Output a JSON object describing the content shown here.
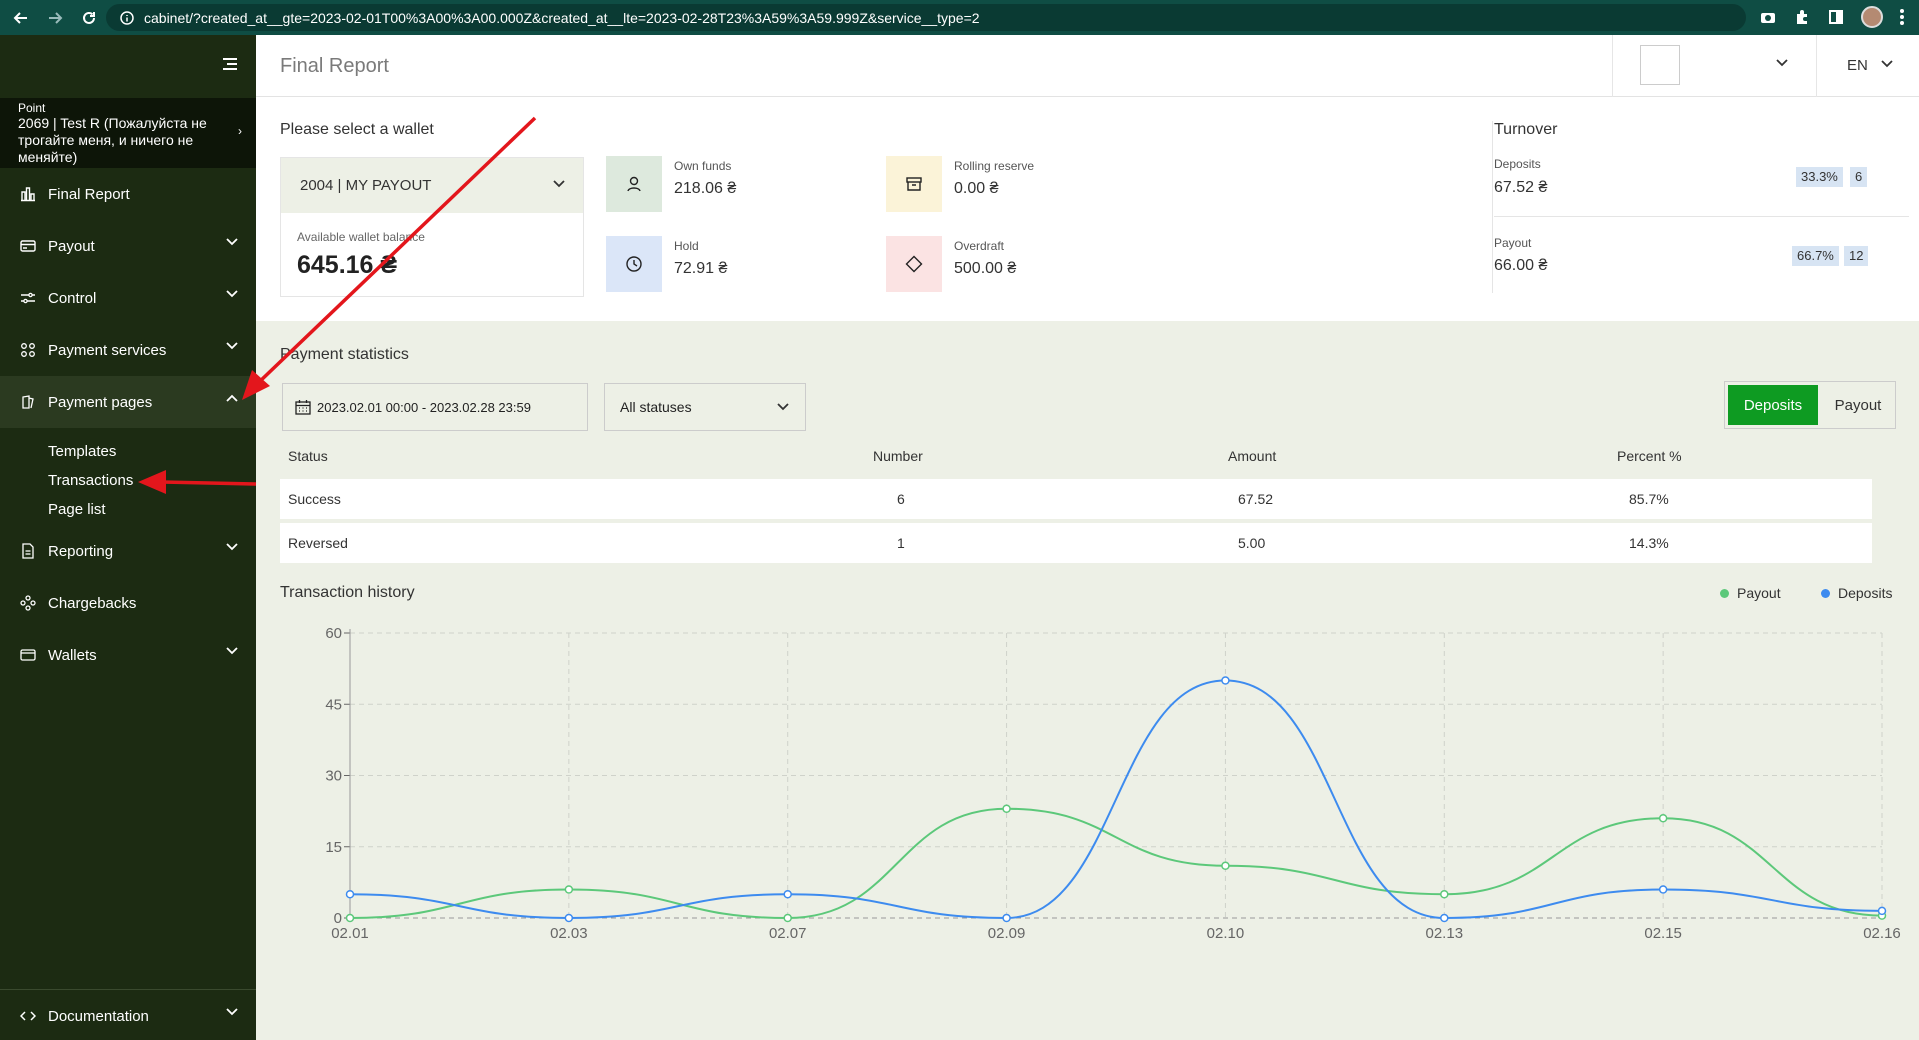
{
  "browser": {
    "url": "cabinet/?created_at__gte=2023-02-01T00%3A00%3A00.000Z&created_at__lte=2023-02-28T23%3A59%3A59.999Z&service__type=2"
  },
  "sidebar": {
    "point_label": "Point",
    "point_name": "2069 | Test R (Пожалуйста не трогайте меня, и ничего не меняйте)",
    "items": [
      {
        "label": "Final Report",
        "icon": "chart-icon"
      },
      {
        "label": "Payout",
        "icon": "card-icon"
      },
      {
        "label": "Control",
        "icon": "sliders-icon"
      },
      {
        "label": "Payment services",
        "icon": "grid-icon"
      },
      {
        "label": "Payment pages",
        "icon": "pages-icon"
      },
      {
        "label": "Reporting",
        "icon": "document-icon"
      },
      {
        "label": "Chargebacks",
        "icon": "network-icon"
      },
      {
        "label": "Wallets",
        "icon": "wallet-icon"
      },
      {
        "label": "Documentation",
        "icon": "code-icon"
      }
    ],
    "sub_items": [
      "Templates",
      "Transactions",
      "Page list"
    ]
  },
  "header": {
    "title": "Final Report",
    "language": "EN"
  },
  "wallet": {
    "section_title": "Please select a wallet",
    "selected": "2004 | MY PAYOUT",
    "available_label": "Available wallet balance",
    "available_value": "645.16 ₴"
  },
  "stats": {
    "own_funds_label": "Own funds",
    "own_funds_value": "218.06 ₴",
    "rolling_label": "Rolling reserve",
    "rolling_value": "0.00 ₴",
    "hold_label": "Hold",
    "hold_value": "72.91 ₴",
    "overdraft_label": "Overdraft",
    "overdraft_value": "500.00 ₴",
    "colors": {
      "own": "#dde9dd",
      "rolling": "#fbf3d8",
      "hold": "#dbe6f8",
      "overdraft": "#fbe3e3"
    }
  },
  "turnover": {
    "title": "Turnover",
    "deposits_label": "Deposits",
    "deposits_value": "67.52 ₴",
    "deposits_percent": "33.3%",
    "deposits_count": "6",
    "payout_label": "Payout",
    "payout_value": "66.00 ₴",
    "payout_percent": "66.7%",
    "payout_count": "12"
  },
  "payment_statistics": {
    "title": "Payment statistics",
    "date_range": "2023.02.01 00:00 - 2023.02.28 23:59",
    "status_filter": "All statuses",
    "toggle_active": "Deposits",
    "toggle_inactive": "Payout",
    "columns": [
      "Status",
      "Number",
      "Amount",
      "Percent %"
    ],
    "rows": [
      [
        "Success",
        "6",
        "67.52",
        "85.7%"
      ],
      [
        "Reversed",
        "1",
        "5.00",
        "14.3%"
      ]
    ]
  },
  "history": {
    "title": "Transaction history",
    "legend_payout": "Payout",
    "legend_deposits": "Deposits"
  },
  "chart_data": {
    "type": "line",
    "categories": [
      "02.01",
      "02.03",
      "02.07",
      "02.09",
      "02.10",
      "02.13",
      "02.15",
      "02.16"
    ],
    "series": [
      {
        "name": "Payout",
        "color": "#5cc87a",
        "values": [
          0,
          6,
          0,
          23,
          11,
          5,
          21,
          0.5
        ]
      },
      {
        "name": "Deposits",
        "color": "#3d8bef",
        "values": [
          5,
          0,
          5,
          0,
          50,
          0,
          6,
          1.5
        ]
      }
    ],
    "yticks": [
      0,
      15,
      30,
      45,
      60
    ],
    "ylim": [
      0,
      60
    ],
    "grid": true,
    "legend_position": "top-right"
  },
  "accent_color": "#0e9b22"
}
